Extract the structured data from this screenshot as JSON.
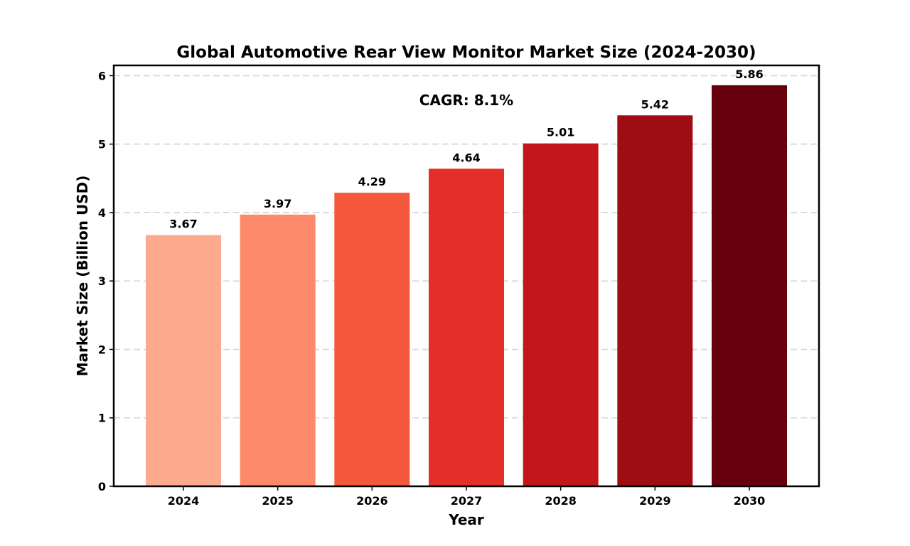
{
  "chart_data": {
    "type": "bar",
    "title": "Global Automotive Rear View Monitor Market Size (2024-2030)",
    "xlabel": "Year",
    "ylabel": "Market Size (Billion USD)",
    "categories": [
      "2024",
      "2025",
      "2026",
      "2027",
      "2028",
      "2029",
      "2030"
    ],
    "values": [
      3.67,
      3.97,
      4.29,
      4.64,
      5.01,
      5.42,
      5.86
    ],
    "value_labels": [
      "3.67",
      "3.97",
      "4.29",
      "4.64",
      "5.01",
      "5.42",
      "5.86"
    ],
    "bar_colors": [
      "#fcab8f",
      "#fc8a6a",
      "#f6583e",
      "#e32f27",
      "#c3161b",
      "#9e0d14",
      "#67000d"
    ],
    "ylim": [
      0,
      6.15
    ],
    "yticks": [
      0,
      1,
      2,
      3,
      4,
      5,
      6
    ],
    "ytick_labels": [
      "0",
      "1",
      "2",
      "3",
      "4",
      "5",
      "6"
    ],
    "grid": "horizontal dashed",
    "annotations": [
      {
        "text": "CAGR: 8.1%"
      }
    ]
  }
}
